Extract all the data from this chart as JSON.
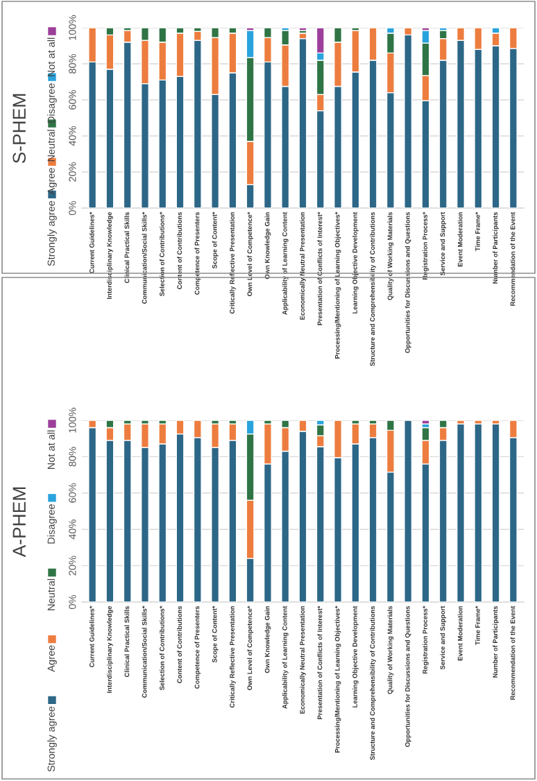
{
  "chart_data": [
    {
      "type": "bar",
      "stacked": true,
      "title": "S-PHEM",
      "legend": "left",
      "grid": "y",
      "categories": [
        "Current Guidelines*",
        "Interdisciplinary Knowledge",
        "Clinical Practical Skills",
        "Communication/Social Skills*",
        "Selection of Contributions*",
        "Content of Contributions",
        "Competence of Presenters",
        "Scope of Content*",
        "Critically Reflective Presentation",
        "Own Level of Competence*",
        "Own Knowledge Gain",
        "Applicability of Learning Content",
        "Economically Neutral Presentation",
        "Presentation of Conflicts of Interest*",
        "Processing/Mentioning of Learning Objectives*",
        "Learning Objective Development",
        "Structure and Comprehensibility of Contributions",
        "Quality of Working Materials",
        "Opportunities for Discussions and Questions",
        "Registration Process*",
        "Service and Support",
        "Event Moderation",
        "Time Frame*",
        "Number of Participants",
        "Recommendation of the Event"
      ],
      "ylim": [
        0,
        100
      ],
      "yticks": [
        {
          "value": 0,
          "label": "0%"
        },
        {
          "value": 20,
          "label": "20%"
        },
        {
          "value": 40,
          "label": "40%"
        },
        {
          "value": 60,
          "label": "60%"
        },
        {
          "value": 80,
          "label": "80%"
        },
        {
          "value": 100,
          "label": "100%"
        }
      ],
      "series": [
        {
          "name": "Strongly agree",
          "color": "#2d6787",
          "values": [
            81,
            77,
            92,
            69,
            71,
            73,
            93,
            63,
            75,
            13,
            81,
            67.5,
            94,
            54,
            67.5,
            75.5,
            82,
            64,
            96,
            59.5,
            82,
            93,
            88,
            90,
            88.5
          ]
        },
        {
          "name": "Agree",
          "color": "#ed7d3f",
          "values": [
            19,
            19,
            6.5,
            24,
            21,
            24,
            5,
            31.5,
            22,
            24,
            13.5,
            23,
            3,
            9,
            24.5,
            23,
            18,
            22,
            4,
            14,
            12,
            7,
            12,
            7,
            11.5
          ]
        },
        {
          "name": "Neutral",
          "color": "#2f7445",
          "values": [
            0,
            4,
            1.5,
            7,
            8,
            3,
            2,
            5.5,
            3,
            46.5,
            5.5,
            8,
            1.5,
            19,
            8,
            1.5,
            0,
            11,
            0,
            18,
            4.5,
            0,
            0,
            0,
            0
          ]
        },
        {
          "name": "Disagree",
          "color": "#29a3dc",
          "values": [
            0,
            0,
            0,
            0,
            0,
            0,
            0,
            0,
            0,
            15,
            0,
            1.5,
            0,
            4,
            0,
            0,
            0,
            3,
            0,
            7,
            1.5,
            0,
            0,
            3,
            0
          ]
        },
        {
          "name": "Not at all",
          "color": "#9c3f9b",
          "values": [
            0,
            0,
            0,
            0,
            0,
            0,
            0,
            0,
            0,
            1.5,
            0,
            0,
            1.5,
            14,
            0,
            0,
            0,
            0,
            0,
            1.5,
            0,
            0,
            0,
            0,
            0
          ]
        }
      ]
    },
    {
      "type": "bar",
      "stacked": true,
      "title": "A-PHEM",
      "legend": "left",
      "grid": "y",
      "categories": [
        "Current Guidelines*",
        "Interdisciplinary Knowledge",
        "Clinical Practical Skills",
        "Communication/Social Skills*",
        "Selection of Contributions*",
        "Content of Contributions",
        "Competence of Presenters",
        "Scope of Content*",
        "Critically Reflective Presentation",
        "Own Level of Competence*",
        "Own Knowledge Gain",
        "Applicability of Learning Content",
        "Economically Neutral Presentation",
        "Presentation of Conflicts of Interest*",
        "Processing/Mentioning of Learning Objectives*",
        "Learning Objective Development",
        "Structure and Comprehensibility of Contributions",
        "Quality of Working Materials",
        "Opportunities for Discussions and Questions",
        "Registration Process*",
        "Service and Support",
        "Event Moderation",
        "Time Frame*",
        "Number of Participants",
        "Recommendation of the Event"
      ],
      "ylim": [
        0,
        100
      ],
      "yticks": [
        {
          "value": 0,
          "label": "0%"
        },
        {
          "value": 20,
          "label": "20%"
        },
        {
          "value": 40,
          "label": "40%"
        },
        {
          "value": 60,
          "label": "60%"
        },
        {
          "value": 80,
          "label": "80%"
        },
        {
          "value": 100,
          "label": "100%"
        }
      ],
      "series": [
        {
          "name": "Strongly agree",
          "color": "#2d6787",
          "values": [
            96,
            89,
            89,
            85,
            87,
            92.5,
            90.5,
            85,
            89,
            24,
            76,
            83,
            94,
            85.5,
            79.5,
            87,
            90.5,
            71.5,
            100,
            76,
            89,
            98,
            98,
            98,
            90.5
          ]
        },
        {
          "name": "Agree",
          "color": "#ed7d3f",
          "values": [
            4,
            7,
            9,
            13,
            11,
            7.5,
            9.5,
            13,
            9,
            32,
            22,
            13,
            6,
            6,
            20.5,
            11,
            7.5,
            23,
            0,
            13,
            7,
            2,
            2,
            2,
            9.5
          ]
        },
        {
          "name": "Neutral",
          "color": "#2f7445",
          "values": [
            0,
            4,
            2,
            2,
            2,
            0,
            0,
            2,
            2,
            36.5,
            2,
            4,
            0,
            6,
            0,
            2,
            2,
            5.5,
            0,
            7,
            4,
            0,
            0,
            0,
            0
          ]
        },
        {
          "name": "Disagree",
          "color": "#29a3dc",
          "values": [
            0,
            0,
            0,
            0,
            0,
            0,
            0,
            0,
            0,
            7.5,
            0,
            0,
            0,
            2.5,
            0,
            0,
            0,
            0,
            0,
            2,
            0,
            0,
            0,
            0,
            0
          ]
        },
        {
          "name": "Not at all",
          "color": "#9c3f9b",
          "values": [
            0,
            0,
            0,
            0,
            0,
            0,
            0,
            0,
            0,
            0,
            0,
            0,
            0,
            0,
            0,
            0,
            0,
            0,
            0,
            2,
            0,
            0,
            0,
            0,
            0
          ]
        }
      ]
    }
  ]
}
